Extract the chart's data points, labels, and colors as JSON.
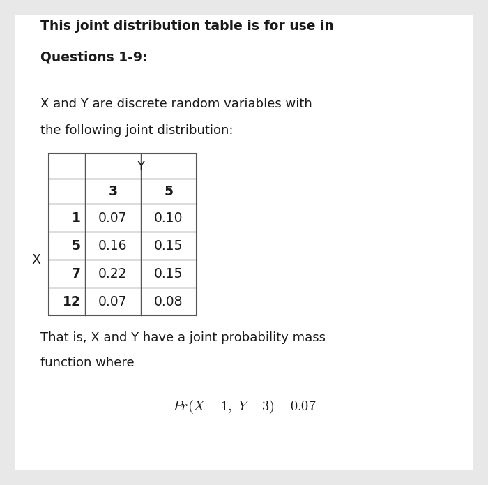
{
  "title_line1": "This joint distribution table is for use in",
  "title_line2": "Questions 1-9:",
  "desc_line1": "X and Y are discrete random variables with",
  "desc_line2": "the following joint distribution:",
  "footer_line1": "That is, X and Y have a joint probability mass",
  "footer_line2": "function where",
  "background_color": "#e8e8e8",
  "panel_color": "#ffffff",
  "text_color": "#1a1a1a",
  "table_border_color": "#555555",
  "table": {
    "row_labels": [
      "1",
      "5",
      "7",
      "12"
    ],
    "col_labels": [
      "3",
      "5"
    ],
    "values": [
      [
        "0.07",
        "0.10"
      ],
      [
        "0.16",
        "0.15"
      ],
      [
        "0.22",
        "0.15"
      ],
      [
        "0.07",
        "0.08"
      ]
    ],
    "x_label": "X",
    "y_label": "Y"
  },
  "title_fontsize": 13.5,
  "body_fontsize": 13.0,
  "table_fontsize": 13.5,
  "formula_fontsize": 14.5
}
